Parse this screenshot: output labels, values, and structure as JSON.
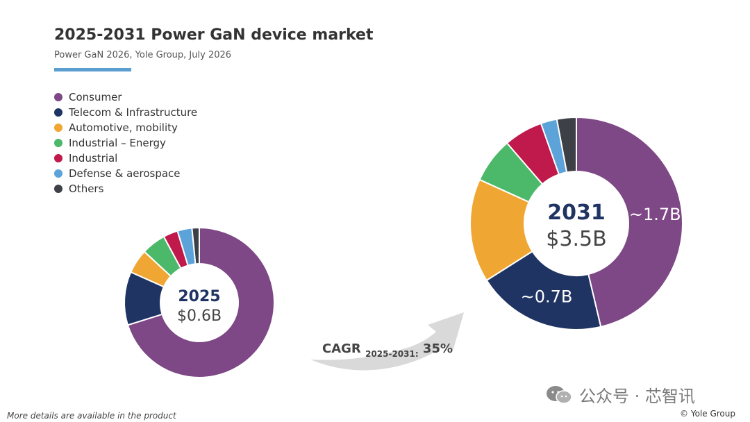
{
  "header": {
    "title": "2025-2031 Power GaN device market",
    "subtitle": "Power GaN 2026, Yole Group, July 2026"
  },
  "legend": [
    {
      "label": "Consumer",
      "color": "#7e4785"
    },
    {
      "label": "Telecom & Infrastructure",
      "color": "#1f3463"
    },
    {
      "label": "Automotive, mobility",
      "color": "#f0a632"
    },
    {
      "label": "Industrial – Energy",
      "color": "#4cb86a"
    },
    {
      "label": "Industrial",
      "color": "#c0194b"
    },
    {
      "label": "Defense & aerospace",
      "color": "#5ba3d8"
    },
    {
      "label": "Others",
      "color": "#3d4147"
    }
  ],
  "chart_data": [
    {
      "type": "pie",
      "year": "2025",
      "total": "$0.6B",
      "categories": [
        "Consumer",
        "Telecom & Infrastructure",
        "Automotive, mobility",
        "Industrial – Energy",
        "Industrial",
        "Defense & aerospace",
        "Others"
      ],
      "values": [
        67,
        11,
        5,
        5,
        3,
        3,
        1.5
      ],
      "value_labels": [
        "",
        "",
        "",
        "",
        "",
        "",
        ""
      ]
    },
    {
      "type": "pie",
      "year": "2031",
      "total": "$3.5B",
      "categories": [
        "Consumer",
        "Telecom & Infrastructure",
        "Automotive, mobility",
        "Industrial – Energy",
        "Industrial",
        "Defense & aerospace",
        "Others"
      ],
      "values": [
        47,
        20,
        16,
        7,
        6,
        2.5,
        3
      ],
      "value_labels": [
        "~1.7B",
        "~0.7B",
        "",
        "",
        "",
        "",
        ""
      ]
    }
  ],
  "cagr": {
    "label": "CAGR",
    "period": "2025-2031:",
    "value": "35%"
  },
  "footnote": "More details are available in the product",
  "copyright": "© Yole Group",
  "watermark": "公众号 · 芯智讯"
}
